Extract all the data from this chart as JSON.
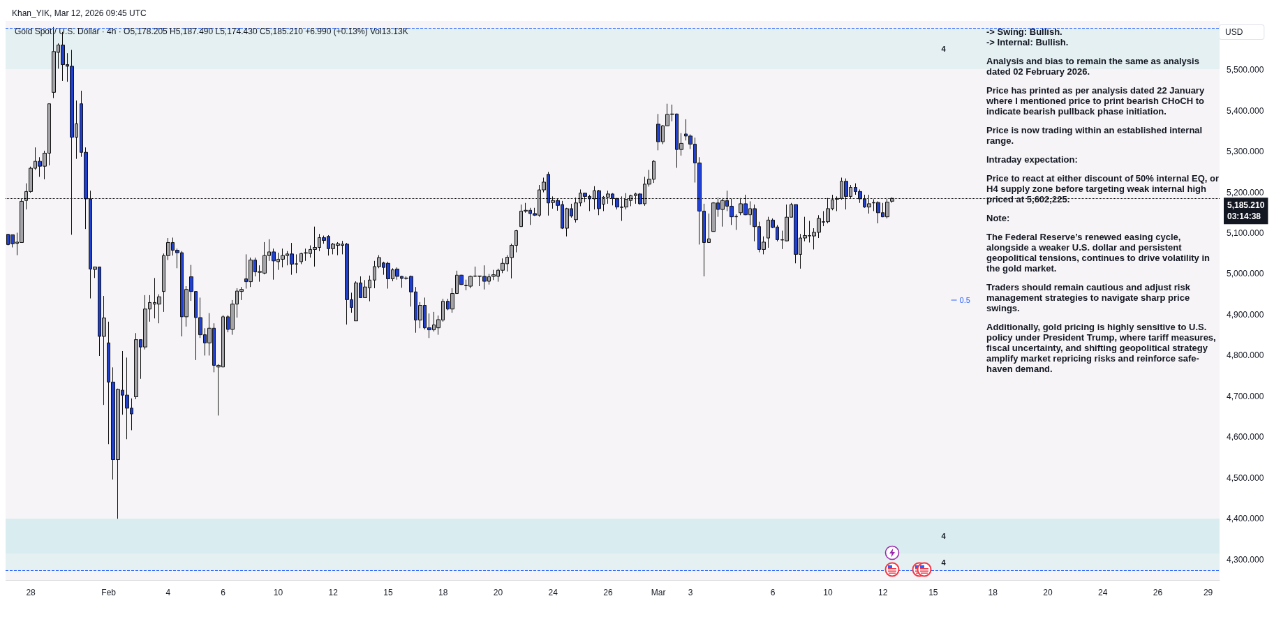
{
  "chart_data": {
    "type": "candlestick",
    "title": "Gold Spot / U.S. Dollar · 4h · O5,178.205 H5,187.490 L5,174.430 C5,185.210 +6.990 (+0.13%) Vol13.13K",
    "subtitle": "Khan_YIK, Mar 12, 2026 09:45 UTC",
    "ylabel": "USD",
    "categories": [
      null,
      null,
      null,
      null,
      null,
      "28",
      null,
      null,
      null,
      null,
      null,
      null,
      null,
      null,
      null,
      null,
      null,
      null,
      null,
      null,
      null,
      null,
      "Feb",
      null,
      null,
      null,
      null,
      null,
      null,
      null,
      null,
      null,
      null,
      null,
      null,
      "4",
      null,
      null,
      null,
      null,
      null,
      null,
      null,
      null,
      null,
      null,
      null,
      "6",
      null,
      null,
      null,
      null,
      null,
      null,
      null,
      null,
      null,
      null,
      null,
      "10",
      null,
      null,
      null,
      null,
      null,
      null,
      null,
      null,
      null,
      null,
      null,
      "12",
      null,
      null,
      null,
      null,
      null,
      null,
      null,
      null,
      null,
      null,
      null,
      "15",
      null,
      null,
      null,
      null,
      null,
      null,
      null,
      null,
      null,
      null,
      null,
      "18",
      null,
      null,
      null,
      null,
      null,
      null,
      null,
      null,
      null,
      null,
      null,
      "20",
      null,
      null,
      null,
      null,
      null,
      null,
      null,
      null,
      null,
      null,
      null,
      "24",
      null,
      null,
      null,
      null,
      null,
      null,
      null,
      null,
      null,
      null,
      null,
      "26",
      null,
      null,
      null,
      null,
      null,
      null,
      null,
      null,
      null,
      null,
      "Mar",
      null,
      null,
      null,
      null,
      null,
      null,
      "3",
      null,
      null,
      null,
      null,
      null,
      null,
      null,
      null,
      null,
      null,
      null,
      null,
      null,
      null,
      null,
      null,
      null,
      "6",
      null,
      null,
      null,
      null,
      null,
      null,
      null,
      null,
      null,
      null,
      null,
      "10",
      null,
      null,
      null,
      null,
      null,
      null,
      null,
      null,
      null,
      null,
      null,
      "12",
      null,
      null,
      null,
      null,
      null,
      null,
      null,
      null,
      null,
      null,
      "15",
      null,
      null,
      null,
      null,
      null,
      null,
      null,
      null,
      null,
      null,
      null,
      null,
      "18",
      null,
      null,
      null,
      null,
      null,
      null,
      null,
      null,
      null,
      null,
      null,
      "20",
      null,
      null,
      null,
      null,
      null,
      null,
      null,
      null,
      null,
      null,
      null,
      "24",
      null,
      null,
      null,
      null,
      null,
      null,
      null,
      null,
      null,
      null,
      null,
      "26",
      null,
      null,
      null,
      null,
      null,
      null,
      null,
      null,
      null,
      null,
      "29",
      null,
      null
    ],
    "ohlc": [
      [
        5097,
        5098,
        5070,
        5072
      ],
      [
        5096,
        5096,
        5065,
        5074
      ],
      [
        5075,
        5101,
        5046,
        5078
      ],
      [
        5077,
        5184,
        5077,
        5178
      ],
      [
        5180,
        5222,
        5158,
        5202
      ],
      [
        5202,
        5263,
        5199,
        5259
      ],
      [
        5259,
        5310,
        5255,
        5276
      ],
      [
        5276,
        5286,
        5238,
        5264
      ],
      [
        5264,
        5302,
        5232,
        5296
      ],
      [
        5296,
        5417,
        5266,
        5417
      ],
      [
        5445,
        5605,
        5431,
        5545
      ],
      [
        5543,
        5565,
        5503,
        5561
      ],
      [
        5561,
        5593,
        5473,
        5513
      ],
      [
        5513,
        5541,
        5471,
        5509
      ],
      [
        5509,
        5549,
        5096,
        5335
      ],
      [
        5335,
        5425,
        5282,
        5368
      ],
      [
        5417,
        5449,
        5287,
        5298
      ],
      [
        5298,
        5310,
        5110,
        5184
      ],
      [
        5184,
        5204,
        4940,
        5012
      ],
      [
        5011,
        5018,
        4990,
        5017
      ],
      [
        5017,
        5017,
        4799,
        4847
      ],
      [
        4847,
        4946,
        4679,
        4892
      ],
      [
        4831,
        4883,
        4583,
        4735
      ],
      [
        4735,
        4771,
        4496,
        4545
      ],
      [
        4545,
        4719,
        4400,
        4717
      ],
      [
        4715,
        4811,
        4655,
        4703
      ],
      [
        4703,
        4795,
        4595,
        4671
      ],
      [
        4671,
        4695,
        4617,
        4657
      ],
      [
        4699,
        4855,
        4693,
        4839
      ],
      [
        4839,
        4839,
        4743,
        4821
      ],
      [
        4821,
        4948,
        4815,
        4914
      ],
      [
        4914,
        4948,
        4883,
        4930
      ],
      [
        4926,
        4990,
        4891,
        4930
      ],
      [
        4926,
        4950,
        4879,
        4944
      ],
      [
        4957,
        5050,
        4907,
        5045
      ],
      [
        5045,
        5088,
        5034,
        5077
      ],
      [
        5077,
        5089,
        5045,
        5058
      ],
      [
        5058,
        5062,
        5014,
        5052
      ],
      [
        5052,
        5056,
        4847,
        4895
      ],
      [
        4895,
        4970,
        4871,
        4962
      ],
      [
        4993,
        5022,
        4934,
        4957
      ],
      [
        4957,
        4957,
        4789,
        4893
      ],
      [
        4893,
        4942,
        4843,
        4851
      ],
      [
        4851,
        4867,
        4800,
        4831
      ],
      [
        4831,
        4904,
        4800,
        4867
      ],
      [
        4867,
        4879,
        4759,
        4776
      ],
      [
        4772,
        4779,
        4653,
        4776
      ],
      [
        4772,
        4899,
        4772,
        4895
      ],
      [
        4895,
        4899,
        4857,
        4864
      ],
      [
        4864,
        4936,
        4851,
        4926
      ],
      [
        4926,
        4965,
        4893,
        4958
      ],
      [
        4957,
        4968,
        4936,
        4962
      ],
      [
        4988,
        5048,
        4964,
        4981
      ],
      [
        4981,
        5040,
        4968,
        5034
      ],
      [
        5034,
        5040,
        4994,
        5005
      ],
      [
        5004,
        5021,
        4981,
        5006
      ],
      [
        5002,
        5078,
        4999,
        5045
      ],
      [
        5045,
        5085,
        5032,
        5054
      ],
      [
        5054,
        5062,
        4986,
        5032
      ],
      [
        5030,
        5052,
        5010,
        5036
      ],
      [
        5036,
        5062,
        5016,
        5045
      ],
      [
        5045,
        5056,
        5021,
        5049
      ],
      [
        5049,
        5076,
        4998,
        5024
      ],
      [
        5024,
        5048,
        5002,
        5025
      ],
      [
        5030,
        5052,
        5024,
        5050
      ],
      [
        5051,
        5062,
        5032,
        5052
      ],
      [
        5050,
        5070,
        5040,
        5060
      ],
      [
        5060,
        5116,
        5018,
        5065
      ],
      [
        5065,
        5098,
        5056,
        5089
      ],
      [
        5089,
        5094,
        5074,
        5082
      ],
      [
        5092,
        5095,
        5045,
        5062
      ],
      [
        5062,
        5076,
        5048,
        5073
      ],
      [
        5070,
        5078,
        5046,
        5074
      ],
      [
        5070,
        5081,
        5048,
        5073
      ],
      [
        5073,
        5076,
        4876,
        4937
      ],
      [
        4937,
        4954,
        4905,
        4918
      ],
      [
        4885,
        4982,
        4885,
        4978
      ],
      [
        4978,
        4994,
        4942,
        4942
      ],
      [
        4942,
        4985,
        4942,
        4968
      ],
      [
        4966,
        4996,
        4933,
        4985
      ],
      [
        4985,
        5032,
        4965,
        5018
      ],
      [
        5018,
        5046,
        5014,
        5040
      ],
      [
        5027,
        5030,
        4998,
        5016
      ],
      [
        5026,
        5030,
        4964,
        4988
      ],
      [
        4988,
        5014,
        4982,
        5010
      ],
      [
        5012,
        5016,
        4986,
        4994
      ],
      [
        4994,
        4995,
        4966,
        4989
      ],
      [
        4990,
        4994,
        4986,
        4989
      ],
      [
        4994,
        4996,
        4920,
        4956
      ],
      [
        4956,
        4968,
        4856,
        4887
      ],
      [
        4887,
        4931,
        4867,
        4923
      ],
      [
        4923,
        4942,
        4864,
        4868
      ],
      [
        4868,
        4903,
        4843,
        4863
      ],
      [
        4863,
        4907,
        4859,
        4875
      ],
      [
        4868,
        4898,
        4851,
        4888
      ],
      [
        4887,
        4939,
        4883,
        4933
      ],
      [
        4933,
        4939,
        4911,
        4914
      ],
      [
        4914,
        4965,
        4905,
        4952
      ],
      [
        4952,
        5008,
        4952,
        4997
      ],
      [
        4997,
        4998,
        4973,
        4974
      ],
      [
        4972,
        4986,
        4960,
        4971
      ],
      [
        4970,
        4996,
        4965,
        4994
      ],
      [
        4994,
        5018,
        4994,
        4995
      ],
      [
        4995,
        4995,
        4970,
        4994
      ],
      [
        4994,
        5021,
        4962,
        4982
      ],
      [
        4982,
        5000,
        4974,
        4993
      ],
      [
        4994,
        5010,
        4985,
        4998
      ],
      [
        4994,
        5013,
        4981,
        5009
      ],
      [
        5009,
        5038,
        5002,
        5026
      ],
      [
        5025,
        5046,
        5006,
        5041
      ],
      [
        5040,
        5074,
        4989,
        5070
      ],
      [
        5070,
        5108,
        5053,
        5106
      ],
      [
        5116,
        5170,
        5116,
        5154
      ],
      [
        5154,
        5174,
        5150,
        5156
      ],
      [
        5156,
        5162,
        5120,
        5148
      ],
      [
        5148,
        5162,
        5142,
        5144
      ],
      [
        5144,
        5218,
        5140,
        5206
      ],
      [
        5206,
        5236,
        5200,
        5225
      ],
      [
        5244,
        5250,
        5143,
        5174
      ],
      [
        5175,
        5190,
        5160,
        5180
      ],
      [
        5180,
        5184,
        5155,
        5168
      ],
      [
        5170,
        5179,
        5110,
        5112
      ],
      [
        5112,
        5162,
        5092,
        5160
      ],
      [
        5160,
        5172,
        5138,
        5142
      ],
      [
        5133,
        5187,
        5126,
        5174
      ],
      [
        5174,
        5207,
        5166,
        5198
      ],
      [
        5198,
        5199,
        5176,
        5190
      ],
      [
        5190,
        5194,
        5154,
        5184
      ],
      [
        5184,
        5215,
        5158,
        5204
      ],
      [
        5204,
        5206,
        5144,
        5160
      ],
      [
        5171,
        5191,
        5154,
        5188
      ],
      [
        5188,
        5204,
        5172,
        5196
      ],
      [
        5196,
        5198,
        5168,
        5185
      ],
      [
        5185,
        5186,
        5158,
        5164
      ],
      [
        5164,
        5190,
        5130,
        5163
      ],
      [
        5164,
        5198,
        5158,
        5183
      ],
      [
        5180,
        5194,
        5166,
        5192
      ],
      [
        5192,
        5199,
        5172,
        5196
      ],
      [
        5196,
        5198,
        5170,
        5172
      ],
      [
        5172,
        5238,
        5167,
        5220
      ],
      [
        5220,
        5255,
        5214,
        5232
      ],
      [
        5232,
        5279,
        5223,
        5276
      ],
      [
        5367,
        5392,
        5303,
        5324
      ],
      [
        5324,
        5365,
        5318,
        5363
      ],
      [
        5363,
        5417,
        5363,
        5391
      ],
      [
        5391,
        5415,
        5374,
        5392
      ],
      [
        5392,
        5393,
        5260,
        5305
      ],
      [
        5305,
        5345,
        5290,
        5320
      ],
      [
        5343,
        5379,
        5327,
        5338
      ],
      [
        5338,
        5342,
        5306,
        5318
      ],
      [
        5318,
        5334,
        5224,
        5272
      ],
      [
        5272,
        5286,
        5072,
        5154
      ],
      [
        5154,
        5172,
        4994,
        5077
      ],
      [
        5077,
        5148,
        5077,
        5086
      ],
      [
        5104,
        5176,
        5104,
        5174
      ],
      [
        5174,
        5187,
        5140,
        5158
      ],
      [
        5158,
        5186,
        5116,
        5180
      ],
      [
        5180,
        5204,
        5154,
        5166
      ],
      [
        5166,
        5184,
        5120,
        5140
      ],
      [
        5141,
        5146,
        5108,
        5140
      ],
      [
        5150,
        5186,
        5144,
        5172
      ],
      [
        5172,
        5194,
        5144,
        5145
      ],
      [
        5145,
        5178,
        5120,
        5160
      ],
      [
        5160,
        5170,
        5080,
        5116
      ],
      [
        5116,
        5128,
        5053,
        5060
      ],
      [
        5060,
        5092,
        5048,
        5078
      ],
      [
        5088,
        5140,
        5064,
        5132
      ],
      [
        5132,
        5136,
        5112,
        5114
      ],
      [
        5115,
        5120,
        5080,
        5084
      ],
      [
        5084,
        5106,
        5061,
        5083
      ],
      [
        5081,
        5170,
        5080,
        5139
      ],
      [
        5139,
        5174,
        5139,
        5170
      ],
      [
        5170,
        5170,
        5026,
        5048
      ],
      [
        5048,
        5098,
        5013,
        5088
      ],
      [
        5088,
        5140,
        5080,
        5094
      ],
      [
        5094,
        5130,
        5077,
        5093
      ],
      [
        5093,
        5112,
        5060,
        5102
      ],
      [
        5102,
        5144,
        5088,
        5136
      ],
      [
        5128,
        5154,
        5117,
        5127
      ],
      [
        5128,
        5186,
        5124,
        5160
      ],
      [
        5160,
        5194,
        5156,
        5182
      ],
      [
        5183,
        5190,
        5154,
        5185
      ],
      [
        5185,
        5236,
        5182,
        5227
      ],
      [
        5227,
        5234,
        5158,
        5190
      ],
      [
        5190,
        5218,
        5184,
        5212
      ],
      [
        5212,
        5222,
        5194,
        5202
      ],
      [
        5202,
        5207,
        5174,
        5184
      ],
      [
        5184,
        5194,
        5162,
        5164
      ],
      [
        5164,
        5194,
        5148,
        5172
      ],
      [
        5175,
        5183,
        5154,
        5174
      ],
      [
        5175,
        5178,
        5124,
        5150
      ],
      [
        5150,
        5174,
        5139,
        5140
      ],
      [
        5140,
        5186,
        5136,
        5176
      ],
      [
        5178.205,
        5187.49,
        5174.43,
        5185.21
      ],
      null,
      null,
      null,
      null,
      null,
      null,
      null,
      null,
      null,
      null,
      null,
      null,
      null,
      null,
      null,
      null,
      null,
      null,
      null,
      null,
      null,
      null,
      null,
      null,
      null,
      null,
      null,
      null,
      null,
      null,
      null,
      null,
      null,
      null,
      null,
      null,
      null,
      null,
      null,
      null,
      null,
      null,
      null,
      null,
      null,
      null,
      null,
      null,
      null,
      null,
      null,
      null,
      null,
      null,
      null,
      null,
      null,
      null,
      null,
      null,
      null,
      null,
      null,
      null,
      null,
      null,
      null,
      null,
      null,
      null,
      null
    ],
    "ylim": [
      4250,
      5620
    ],
    "yticks": [
      {
        "value": 4300,
        "label": "4,300.000"
      },
      {
        "value": 4400,
        "label": "4,400.000"
      },
      {
        "value": 4500,
        "label": "4,500.000"
      },
      {
        "value": 4600,
        "label": "4,600.000"
      },
      {
        "value": 4700,
        "label": "4,700.000"
      },
      {
        "value": 4800,
        "label": "4,800.000"
      },
      {
        "value": 4900,
        "label": "4,900.000"
      },
      {
        "value": 5000,
        "label": "5,000.000"
      },
      {
        "value": 5100,
        "label": "5,100.000"
      },
      {
        "value": 5200,
        "label": "5,200.000"
      },
      {
        "value": 5300,
        "label": "5,300.000"
      },
      {
        "value": 5400,
        "label": "5,400.000"
      },
      {
        "value": 5500,
        "label": "5,500.000"
      }
    ],
    "bands": [
      {
        "axis": "y",
        "from": 5502,
        "to": 5602.225,
        "color": "#e4f0f2",
        "label": "4"
      },
      {
        "axis": "y",
        "from": 4314,
        "to": 4400,
        "color": "#d9ecef",
        "label": "4"
      },
      {
        "axis": "y",
        "from": 4273,
        "to": 4314,
        "color": "#e4f0f2",
        "label": "4"
      }
    ],
    "ref_lines": [
      {
        "axis": "y",
        "value": 5602.225,
        "label": null,
        "color": "#2962ff",
        "line_style": "dashed"
      },
      {
        "axis": "y",
        "value": 4273,
        "label": null,
        "color": "#2962ff",
        "line_style": "dashed"
      },
      {
        "axis": "y",
        "value": 5185.21,
        "label": "5,185.210\n03:14:38",
        "color": "#000000",
        "line_style": "dotted"
      }
    ],
    "annotations": [
      "-> Swing:  Bullish.",
      "-> Internal:  Bullish.",
      "Analysis and bias to remain the same as analysis dated 02 February 2026.",
      "Price has printed as per analysis dated 22 January where I mentioned price to print bearish CHoCH to indicate bearish pullback phase initiation.",
      "Price is now trading within an established internal range.",
      "Intraday expectation:",
      "Price to react at either discount of 50% internal EQ, or H4 supply zone before targeting weak internal high priced at 5,602,225.",
      "Note:",
      "The Federal Reserve’s renewed easing cycle, alongside a weaker U.S. dollar and persistent geopolitical tensions, continues to drive volatility in the gold market.",
      "Traders should remain cautious and adjust risk management strategies to navigate sharp price swings.",
      "Additionally, gold pricing is highly sensitive to U.S. policy under President Trump, where tariff measures, fiscal uncertainty, and shifting geopolitical strategy amplify market repricing risks and reinforce safe-haven demand.",
      "0.5"
    ]
  }
}
